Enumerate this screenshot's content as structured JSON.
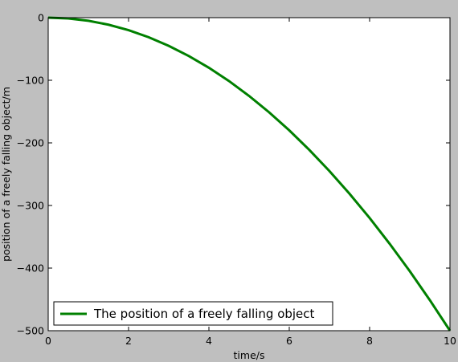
{
  "chart_data": {
    "type": "line",
    "title": "",
    "xlabel": "time/s",
    "ylabel": "position of a freely falling object/m",
    "xlim": [
      0,
      10
    ],
    "ylim": [
      -500,
      0
    ],
    "xticks": [
      0,
      2,
      4,
      6,
      8,
      10
    ],
    "yticks": [
      0,
      -100,
      -200,
      -300,
      -400,
      -500
    ],
    "xtick_labels": [
      "0",
      "2",
      "4",
      "6",
      "8",
      "10"
    ],
    "ytick_labels": [
      "0",
      "−100",
      "−200",
      "−300",
      "−400",
      "−500"
    ],
    "grid": false,
    "legend_position": "lower-left",
    "series": [
      {
        "name": "The position of a freely falling object",
        "color": "#008000",
        "x": [
          0,
          0.5,
          1,
          1.5,
          2,
          2.5,
          3,
          3.5,
          4,
          4.5,
          5,
          5.5,
          6,
          6.5,
          7,
          7.5,
          8,
          8.5,
          9,
          9.5,
          10
        ],
        "y": [
          0,
          -1.25,
          -5,
          -11.25,
          -20,
          -31.25,
          -45,
          -61.25,
          -80,
          -101.25,
          -125,
          -151.25,
          -180,
          -211.25,
          -245,
          -281.25,
          -320,
          -361.25,
          -405,
          -451.25,
          -500
        ]
      }
    ]
  }
}
